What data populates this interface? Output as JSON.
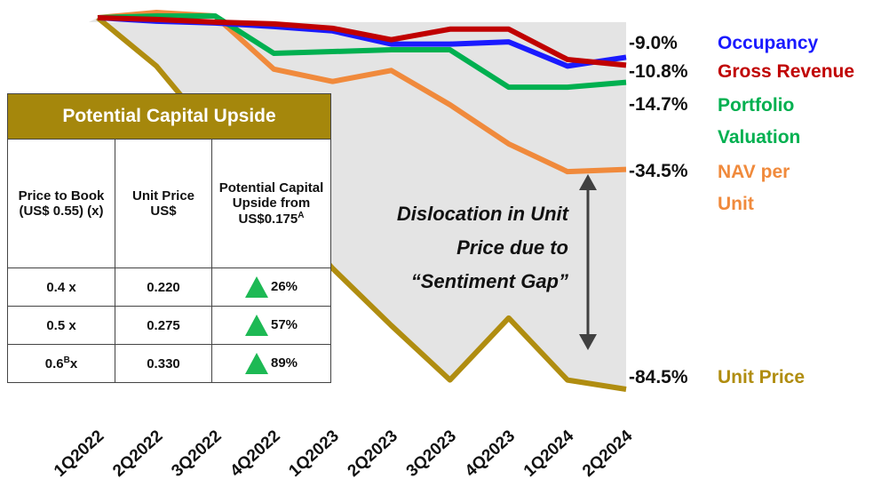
{
  "chart_data": {
    "type": "line",
    "categories": [
      "1Q2022",
      "2Q2022",
      "3Q2022",
      "4Q2022",
      "1Q2023",
      "2Q2023",
      "3Q2023",
      "4Q2023",
      "1Q2024",
      "2Q2024"
    ],
    "series": [
      {
        "name": "Occupancy",
        "color": "#1a1aff",
        "values": [
          0,
          -0.8,
          -1.2,
          -2,
          -3,
          -6,
          -6,
          -5.5,
          -11,
          -9.0
        ],
        "end_label": "-9.0%"
      },
      {
        "name": "Gross Revenue",
        "color": "#c00000",
        "values": [
          0,
          -0.4,
          -1,
          -1.4,
          -2.4,
          -5,
          -2.6,
          -2.6,
          -9.5,
          -10.8
        ],
        "end_label": "-10.8%"
      },
      {
        "name": "Portfolio Valuation",
        "color": "#00b050",
        "values": [
          0,
          0.4,
          0.4,
          -8.1,
          -7.7,
          -7.3,
          -7.3,
          -15.8,
          -15.8,
          -14.7
        ],
        "end_label": "-14.7%"
      },
      {
        "name": "NAV per Unit",
        "color": "#f08a3c",
        "values": [
          0,
          1.2,
          0.4,
          -11.7,
          -14.5,
          -12,
          -19.8,
          -28.7,
          -35,
          -34.5
        ],
        "end_label": "-34.5%"
      },
      {
        "name": "Unit Price",
        "color": "#b08d10",
        "values": [
          0,
          -11,
          -27,
          -42,
          -57,
          -70,
          -82.4,
          -68.3,
          -82.4,
          -84.5
        ],
        "end_label": "-84.5%"
      }
    ],
    "annotation": "Dislocation in Unit Price due to “Sentiment Gap”",
    "table": {
      "title": "Potential Capital Upside",
      "headers": [
        {
          "text": "Price to Book (US$ 0.55) (x)"
        },
        {
          "text": "Unit Price US$"
        },
        {
          "text": "Potential Capital Upside from US$0.175",
          "sup": "A"
        }
      ],
      "rows": [
        [
          {
            "text": "0.4 x"
          },
          {
            "text": "0.220"
          },
          {
            "text": "26%"
          }
        ],
        [
          {
            "text": "0.5 x"
          },
          {
            "text": "0.275"
          },
          {
            "text": "57%"
          }
        ],
        [
          {
            "text": "0.6",
            "sup": "B",
            "after": "x"
          },
          {
            "text": "0.330"
          },
          {
            "text": "89%"
          }
        ]
      ]
    }
  }
}
